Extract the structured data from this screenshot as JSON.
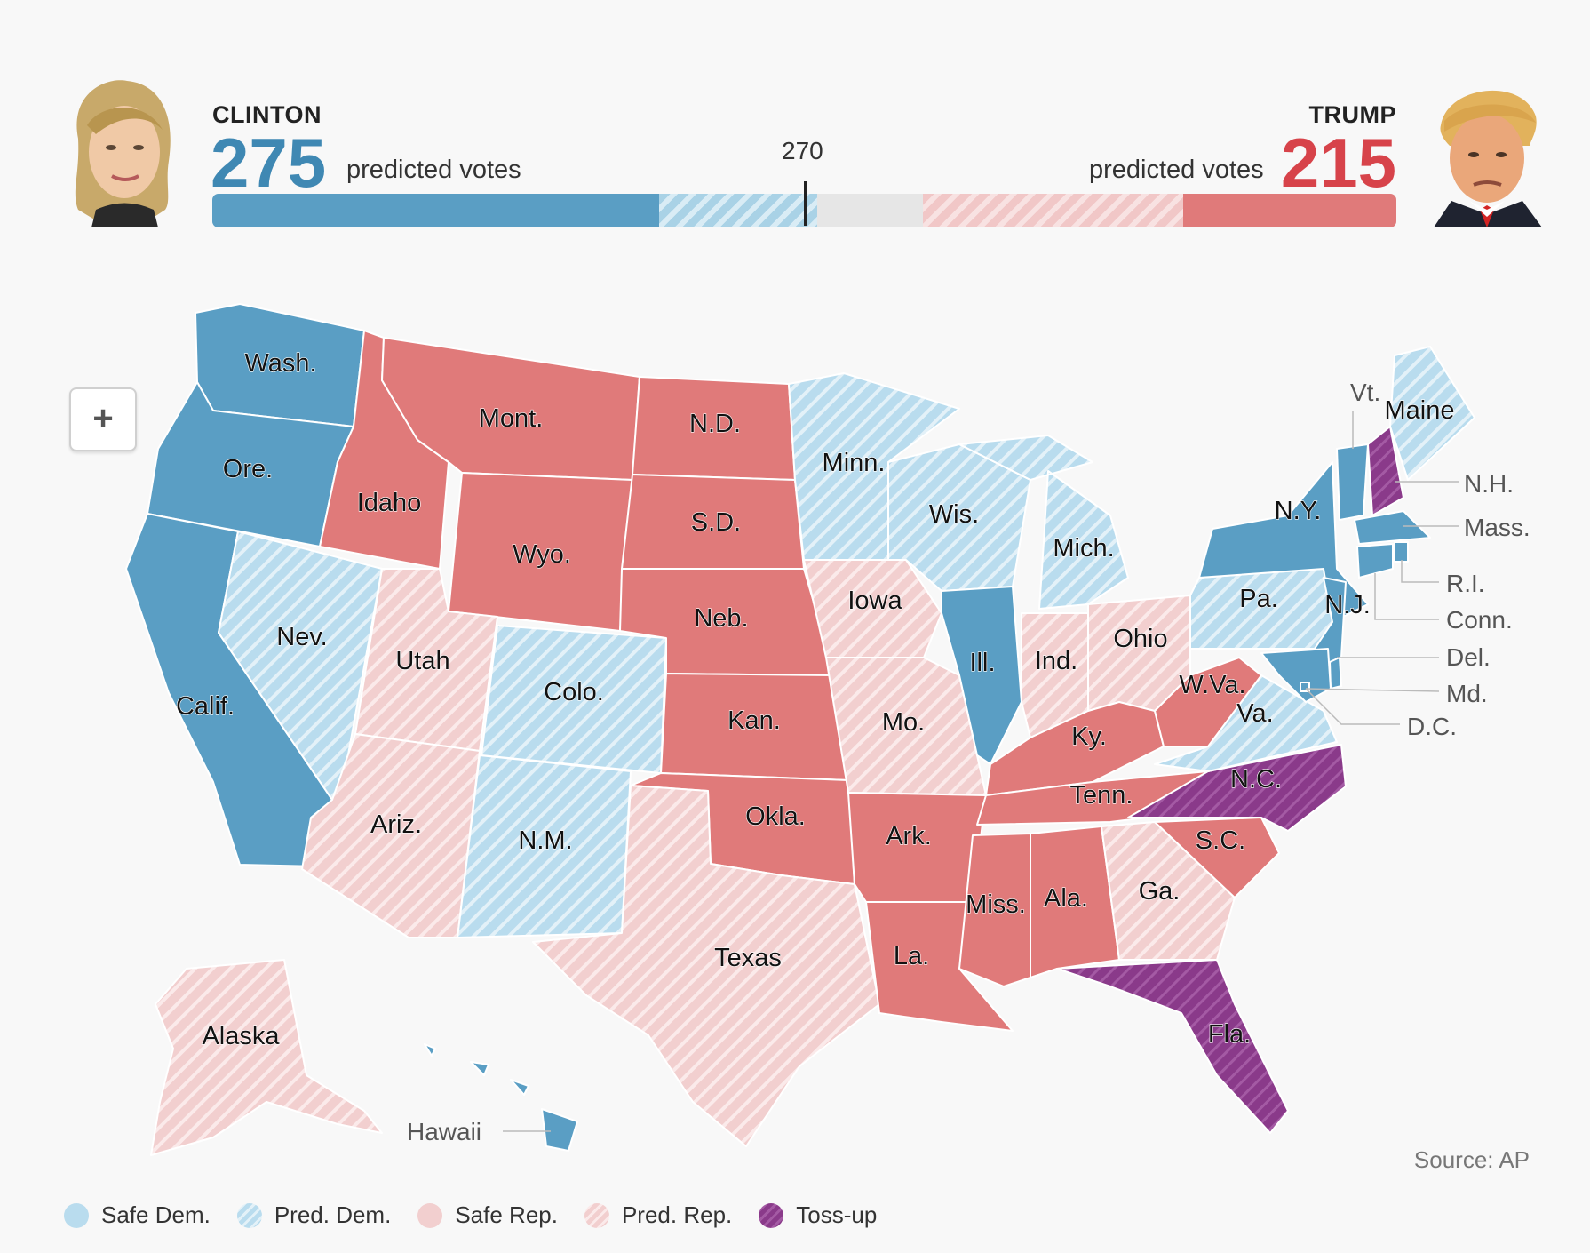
{
  "header": {
    "left": {
      "name": "CLINTON",
      "votes": "275",
      "votes_label": "predicted votes",
      "color": "#3f88b3"
    },
    "right": {
      "name": "TRUMP",
      "votes": "215",
      "votes_label": "predicted votes",
      "color": "#d7434a"
    },
    "threshold": "270",
    "bar": {
      "safe_dem": 203,
      "pred_dem": 72,
      "toss_up": 48,
      "pred_rep": 118,
      "safe_rep": 97,
      "total": 538
    }
  },
  "colors": {
    "safe_dem": "#5a9ec4",
    "pred_dem": "#b9dcee",
    "safe_rep": "#e07a7a",
    "pred_rep": "#f2cfcf",
    "toss_up": "#8a3a8a"
  },
  "map": {
    "zoom_label": "+",
    "states": [
      {
        "abbr": "Wash.",
        "cat": "safe_dem"
      },
      {
        "abbr": "Ore.",
        "cat": "safe_dem"
      },
      {
        "abbr": "Calif.",
        "cat": "safe_dem"
      },
      {
        "abbr": "Nev.",
        "cat": "pred_dem"
      },
      {
        "abbr": "Idaho",
        "cat": "safe_rep"
      },
      {
        "abbr": "Mont.",
        "cat": "safe_rep"
      },
      {
        "abbr": "Wyo.",
        "cat": "safe_rep"
      },
      {
        "abbr": "Utah",
        "cat": "pred_rep"
      },
      {
        "abbr": "Colo.",
        "cat": "pred_dem"
      },
      {
        "abbr": "Ariz.",
        "cat": "pred_rep"
      },
      {
        "abbr": "N.M.",
        "cat": "pred_dem"
      },
      {
        "abbr": "N.D.",
        "cat": "safe_rep"
      },
      {
        "abbr": "S.D.",
        "cat": "safe_rep"
      },
      {
        "abbr": "Neb.",
        "cat": "safe_rep"
      },
      {
        "abbr": "Kan.",
        "cat": "safe_rep"
      },
      {
        "abbr": "Okla.",
        "cat": "safe_rep"
      },
      {
        "abbr": "Texas",
        "cat": "pred_rep"
      },
      {
        "abbr": "Minn.",
        "cat": "pred_dem"
      },
      {
        "abbr": "Iowa",
        "cat": "pred_rep"
      },
      {
        "abbr": "Mo.",
        "cat": "pred_rep"
      },
      {
        "abbr": "Ark.",
        "cat": "safe_rep"
      },
      {
        "abbr": "La.",
        "cat": "safe_rep"
      },
      {
        "abbr": "Wis.",
        "cat": "pred_dem"
      },
      {
        "abbr": "Ill.",
        "cat": "safe_dem"
      },
      {
        "abbr": "Mich.",
        "cat": "pred_dem"
      },
      {
        "abbr": "Ind.",
        "cat": "pred_rep"
      },
      {
        "abbr": "Ohio",
        "cat": "pred_rep"
      },
      {
        "abbr": "Ky.",
        "cat": "safe_rep"
      },
      {
        "abbr": "Tenn.",
        "cat": "safe_rep"
      },
      {
        "abbr": "Miss.",
        "cat": "safe_rep"
      },
      {
        "abbr": "Ala.",
        "cat": "safe_rep"
      },
      {
        "abbr": "Ga.",
        "cat": "pred_rep"
      },
      {
        "abbr": "Fla.",
        "cat": "toss_up"
      },
      {
        "abbr": "S.C.",
        "cat": "safe_rep"
      },
      {
        "abbr": "N.C.",
        "cat": "toss_up"
      },
      {
        "abbr": "Va.",
        "cat": "pred_dem"
      },
      {
        "abbr": "W.Va.",
        "cat": "safe_rep"
      },
      {
        "abbr": "Pa.",
        "cat": "pred_dem"
      },
      {
        "abbr": "N.Y.",
        "cat": "safe_dem"
      },
      {
        "abbr": "N.J.",
        "cat": "safe_dem"
      },
      {
        "abbr": "Vt.",
        "cat": "safe_dem"
      },
      {
        "abbr": "Maine",
        "cat": "pred_dem"
      },
      {
        "abbr": "N.H.",
        "cat": "toss_up"
      },
      {
        "abbr": "Mass.",
        "cat": "safe_dem"
      },
      {
        "abbr": "R.I.",
        "cat": "safe_dem"
      },
      {
        "abbr": "Conn.",
        "cat": "safe_dem"
      },
      {
        "abbr": "Del.",
        "cat": "safe_dem"
      },
      {
        "abbr": "Md.",
        "cat": "safe_dem"
      },
      {
        "abbr": "D.C.",
        "cat": "safe_dem"
      },
      {
        "abbr": "Alaska",
        "cat": "pred_rep"
      },
      {
        "abbr": "Hawaii",
        "cat": "safe_dem"
      }
    ]
  },
  "legend": [
    {
      "label": "Safe Dem.",
      "cat": "safe_dem"
    },
    {
      "label": "Pred. Dem.",
      "cat": "pred_dem"
    },
    {
      "label": "Safe Rep.",
      "cat": "safe_rep"
    },
    {
      "label": "Pred. Rep.",
      "cat": "pred_rep"
    },
    {
      "label": "Toss-up",
      "cat": "toss_up"
    }
  ],
  "source": "Source: AP"
}
